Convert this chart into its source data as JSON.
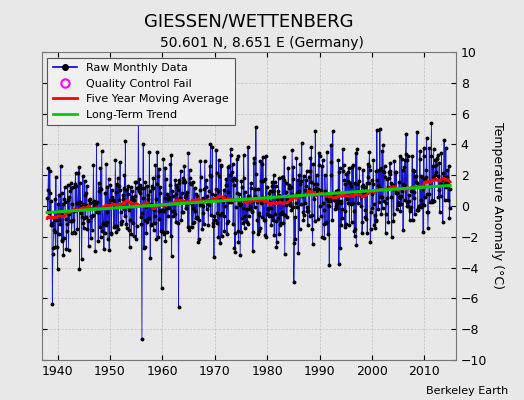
{
  "title": "GIESSEN/WETTENBERG",
  "subtitle": "50.601 N, 8.651 E (Germany)",
  "ylabel": "Temperature Anomaly (°C)",
  "credit": "Berkeley Earth",
  "ylim": [
    -10,
    10
  ],
  "xlim": [
    1937,
    2016
  ],
  "yticks": [
    -10,
    -8,
    -6,
    -4,
    -2,
    0,
    2,
    4,
    6,
    8,
    10
  ],
  "xticks": [
    1940,
    1950,
    1960,
    1970,
    1980,
    1990,
    2000,
    2010
  ],
  "start_year": 1938,
  "end_year": 2014,
  "seed": 42,
  "bg_color": "#e8e8e8",
  "plot_bg_color": "#e8e8e8",
  "raw_line_color": "#0000cc",
  "raw_marker_color": "#000000",
  "ma_color": "#ff0000",
  "trend_color": "#00cc00",
  "qc_color": "#ff00ff",
  "legend_loc": "upper left",
  "title_fontsize": 13,
  "subtitle_fontsize": 10,
  "ylabel_fontsize": 9,
  "tick_fontsize": 9,
  "legend_fontsize": 8,
  "credit_fontsize": 8
}
